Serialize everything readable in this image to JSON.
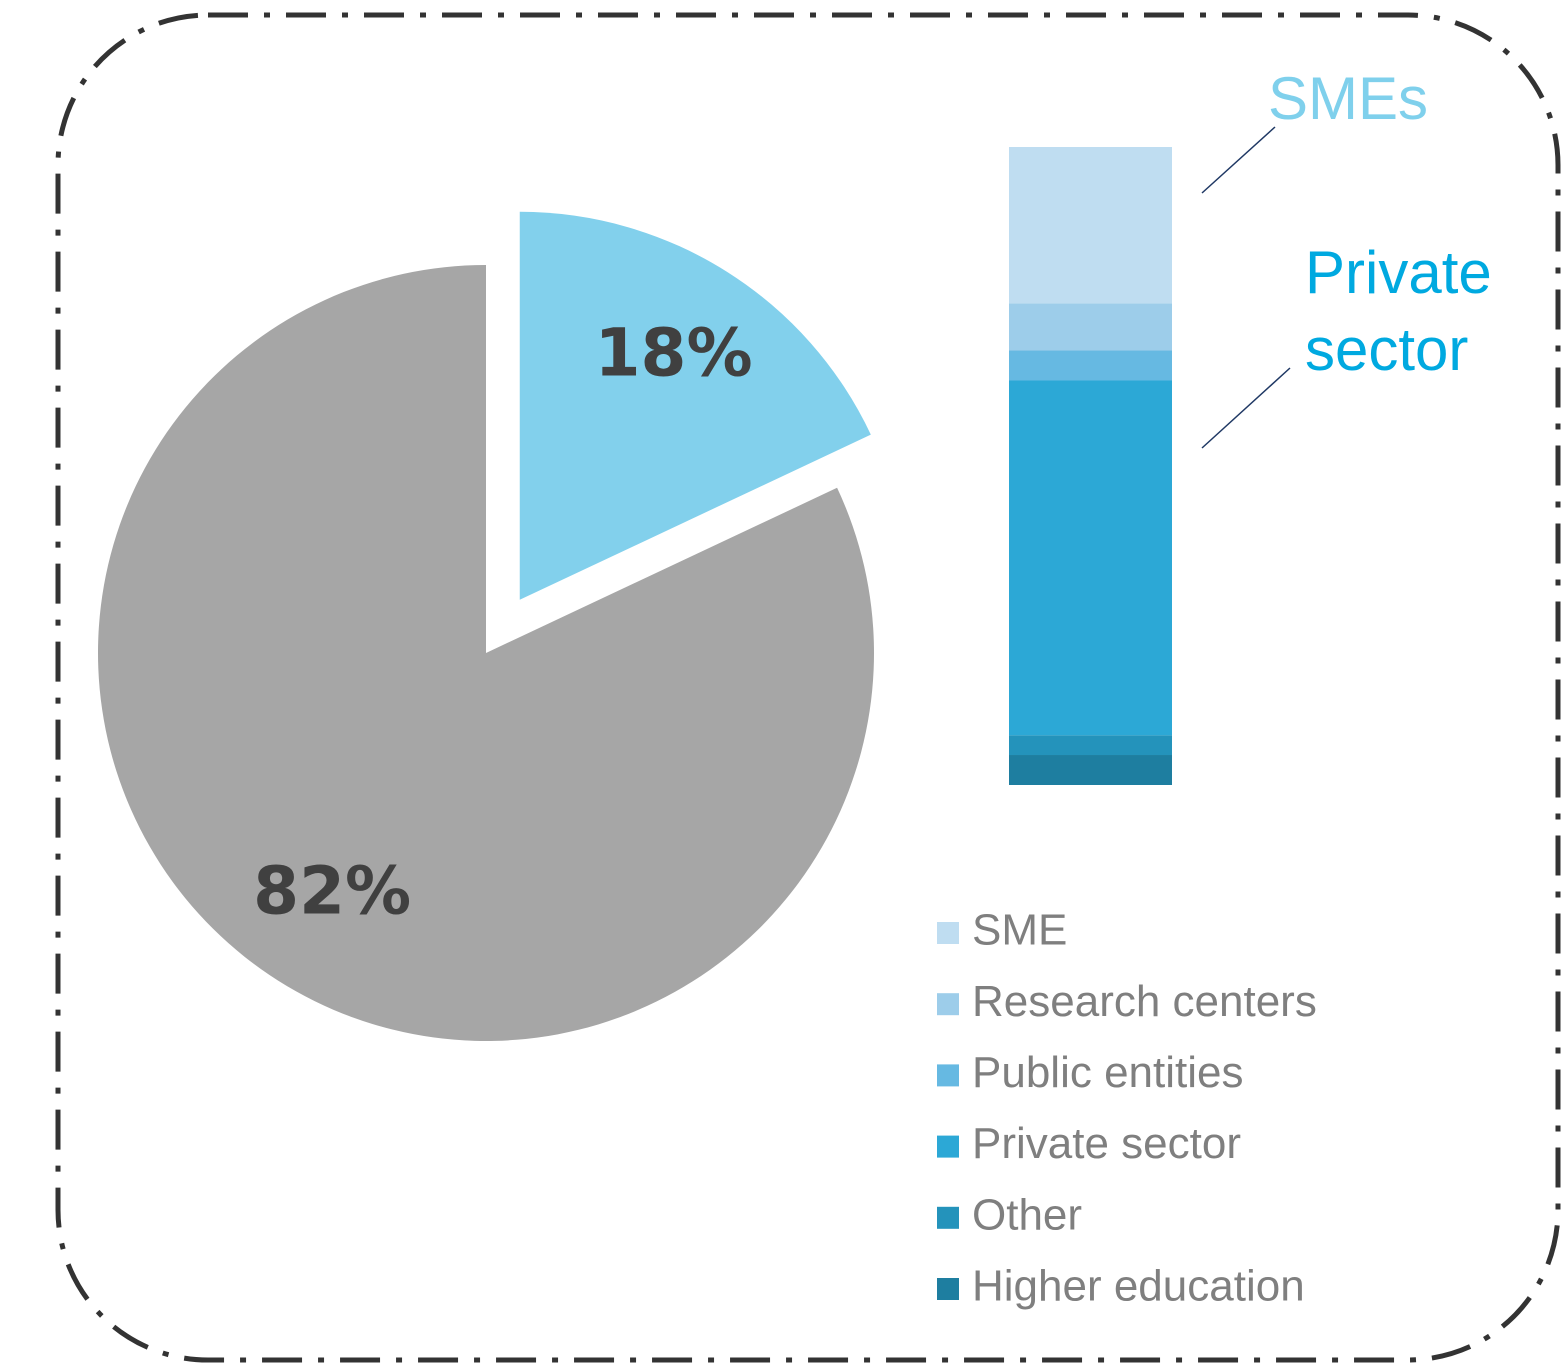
{
  "chart_data": [
    {
      "type": "pie",
      "values": [
        18,
        82
      ],
      "value_labels": [
        "18%",
        "82%"
      ],
      "colors": [
        "#82d0ec",
        "#a6a6a6"
      ],
      "explode": [
        true,
        false
      ]
    },
    {
      "type": "stacked_bar",
      "ylim": [
        0,
        100
      ],
      "series": [
        {
          "name": "SME",
          "color": "#bfddf1",
          "values": [
            24.5
          ]
        },
        {
          "name": "Research centers",
          "color": "#9dcdea",
          "values": [
            7.4
          ]
        },
        {
          "name": "Public entities",
          "color": "#66b9e2",
          "values": [
            4.7
          ]
        },
        {
          "name": "Private sector",
          "color": "#2ca8d6",
          "values": [
            55.6
          ]
        },
        {
          "name": "Other",
          "color": "#2493bb",
          "values": [
            3.1
          ]
        },
        {
          "name": "Higher education",
          "color": "#1e7ea0",
          "values": [
            4.7
          ]
        }
      ],
      "annotations": [
        {
          "lines": [
            "SMEs"
          ],
          "color": "#7fd0ec"
        },
        {
          "lines": [
            "Private",
            "sector"
          ],
          "color": "#00a9e0"
        }
      ]
    }
  ]
}
